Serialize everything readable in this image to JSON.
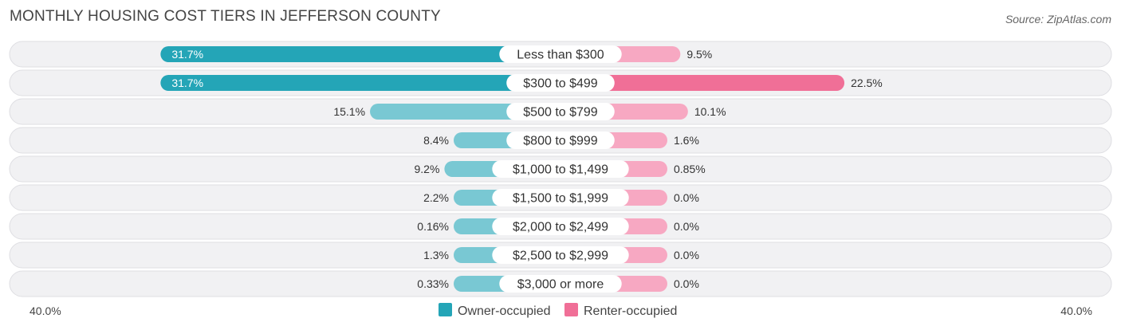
{
  "title": "MONTHLY HOUSING COST TIERS IN JEFFERSON COUNTY",
  "source": "Source: ZipAtlas.com",
  "colors": {
    "owner_strong": "#24a5b7",
    "owner_light": "#79c8d3",
    "renter_strong": "#f06f97",
    "renter_light": "#f7a8c2"
  },
  "chart_data": {
    "type": "bar",
    "orientation": "horizontal-diverging",
    "title": "MONTHLY HOUSING COST TIERS IN JEFFERSON COUNTY",
    "categories": [
      "Less than $300",
      "$300 to $499",
      "$500 to $799",
      "$800 to $999",
      "$1,000 to $1,499",
      "$1,500 to $1,999",
      "$2,000 to $2,499",
      "$2,500 to $2,999",
      "$3,000 or more"
    ],
    "series": [
      {
        "name": "Owner-occupied",
        "side": "left",
        "values": [
          31.7,
          31.7,
          15.1,
          8.4,
          9.2,
          2.2,
          0.16,
          1.3,
          0.33
        ],
        "labels": [
          "31.7%",
          "31.7%",
          "15.1%",
          "8.4%",
          "9.2%",
          "2.2%",
          "0.16%",
          "1.3%",
          "0.33%"
        ]
      },
      {
        "name": "Renter-occupied",
        "side": "right",
        "values": [
          9.5,
          22.5,
          10.1,
          1.6,
          0.85,
          0.0,
          0.0,
          0.0,
          0.0
        ],
        "labels": [
          "9.5%",
          "22.5%",
          "10.1%",
          "1.6%",
          "0.85%",
          "0.0%",
          "0.0%",
          "0.0%",
          "0.0%"
        ]
      }
    ],
    "axis_range": [
      -40,
      40
    ],
    "axis_labels": {
      "left": "40.0%",
      "right": "40.0%"
    },
    "legend": [
      "Owner-occupied",
      "Renter-occupied"
    ],
    "legend_position": "bottom-center"
  }
}
